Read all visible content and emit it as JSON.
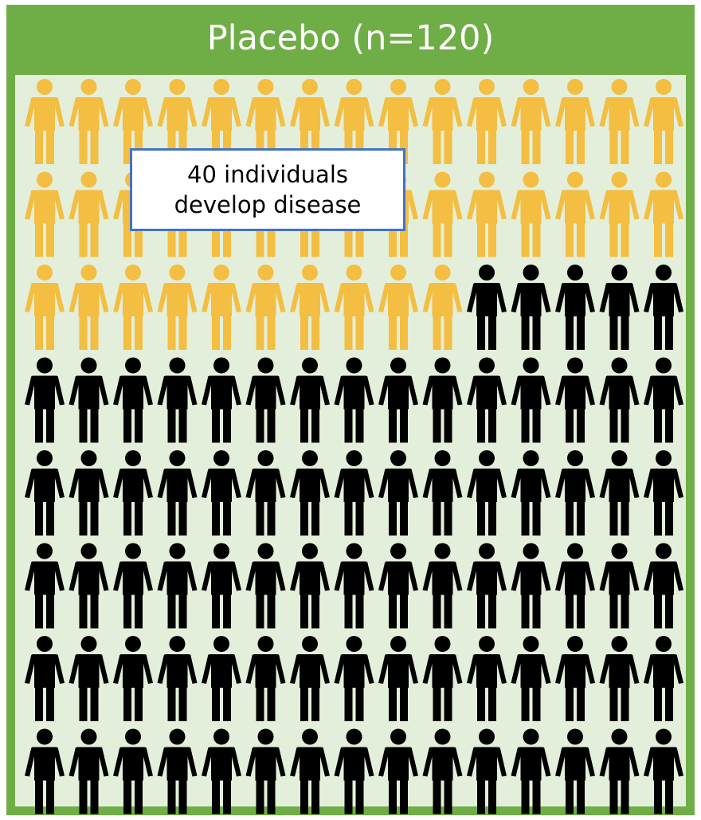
{
  "header": {
    "title": "Placebo (n=120)"
  },
  "callout": {
    "line1": "40 individuals",
    "line2": "develop disease"
  },
  "pictogram": {
    "total": 120,
    "columns": 15,
    "highlighted": 40,
    "icon": "person-icon",
    "colors": {
      "highlighted": "#f3be41",
      "other": "#000000",
      "frame": "#6fad47",
      "panel": "#e3efda",
      "callout_border": "#4472c4"
    }
  }
}
